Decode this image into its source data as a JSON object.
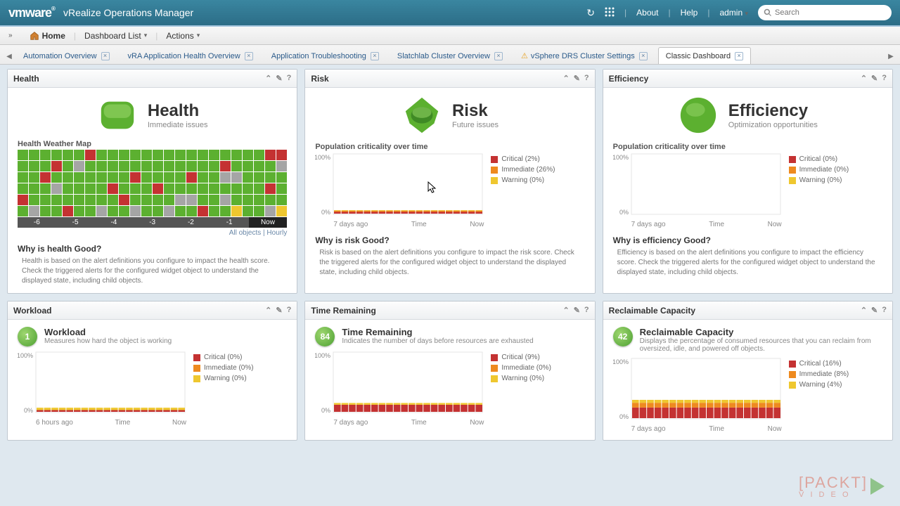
{
  "topbar": {
    "logo": "vmware",
    "app": "vRealize Operations Manager",
    "about": "About",
    "help": "Help",
    "user": "admin",
    "search_placeholder": "Search"
  },
  "menubar": {
    "home": "Home",
    "dashboard_list": "Dashboard List",
    "actions": "Actions"
  },
  "tabs": [
    {
      "label": "Automation Overview"
    },
    {
      "label": "vRA Application Health Overview"
    },
    {
      "label": "Application Troubleshooting"
    },
    {
      "label": "Slatchlab Cluster Overview"
    },
    {
      "label": "vSphere DRS Cluster Settings",
      "warn": true
    },
    {
      "label": "Classic Dashboard",
      "active": true
    }
  ],
  "colors": {
    "green": "#5cb030",
    "red": "#c43232",
    "yellow": "#efc72f",
    "orange": "#ee8a1f",
    "gray": "#a5a5a5",
    "grid": "#e6e6e6"
  },
  "widgets": {
    "health": {
      "title": "Health",
      "badge_title": "Health",
      "badge_sub": "Immediate issues",
      "heatmap_title": "Health Weather Map",
      "heatmap_rows": 6,
      "heatmap_cols": 24,
      "heatmap_reds": [
        [
          0,
          6
        ],
        [
          0,
          22
        ],
        [
          0,
          23
        ],
        [
          1,
          3
        ],
        [
          1,
          18
        ],
        [
          2,
          2
        ],
        [
          2,
          10
        ],
        [
          2,
          15
        ],
        [
          3,
          8
        ],
        [
          3,
          12
        ],
        [
          3,
          22
        ],
        [
          4,
          0
        ],
        [
          4,
          9
        ],
        [
          5,
          4
        ],
        [
          5,
          16
        ]
      ],
      "heatmap_grays": [
        [
          1,
          5
        ],
        [
          1,
          23
        ],
        [
          2,
          18
        ],
        [
          2,
          19
        ],
        [
          3,
          3
        ],
        [
          4,
          14
        ],
        [
          4,
          15
        ],
        [
          4,
          18
        ],
        [
          5,
          1
        ],
        [
          5,
          7
        ],
        [
          5,
          10
        ],
        [
          5,
          13
        ],
        [
          5,
          22
        ]
      ],
      "heatmap_yellows": [
        [
          5,
          19
        ],
        [
          5,
          23
        ]
      ],
      "heatmap_axis": [
        "-6",
        "-5",
        "-4",
        "-3",
        "-2",
        "-1",
        "Now"
      ],
      "heatmap_footer": "All objects | Hourly",
      "why_title": "Why is health Good?",
      "why_body": "Health is based on the alert definitions you configure to impact the health score. Check the triggered alerts for the configured widget object to understand the displayed state, including child objects."
    },
    "risk": {
      "title": "Risk",
      "badge_title": "Risk",
      "badge_sub": "Future issues",
      "chart_title": "Population criticality over time",
      "ylabels": [
        "100%",
        "0%"
      ],
      "xlabels": [
        "7 days ago",
        "Time",
        "Now"
      ],
      "legend": [
        {
          "label": "Critical (2%)",
          "color": "#c43232"
        },
        {
          "label": "Immediate (26%)",
          "color": "#ee8a1f"
        },
        {
          "label": "Warning (0%)",
          "color": "#efc72f"
        }
      ],
      "why_title": "Why is risk Good?",
      "why_body": "Risk is based on the alert definitions you configure to impact the risk score. Check the triggered alerts for the configured widget object to understand the displayed state, including child objects."
    },
    "efficiency": {
      "title": "Efficiency",
      "badge_title": "Efficiency",
      "badge_sub": "Optimization opportunities",
      "chart_title": "Population criticality over time",
      "ylabels": [
        "100%",
        "0%"
      ],
      "xlabels": [
        "7 days ago",
        "Time",
        "Now"
      ],
      "legend": [
        {
          "label": "Critical (0%)",
          "color": "#c43232"
        },
        {
          "label": "Immediate (0%)",
          "color": "#ee8a1f"
        },
        {
          "label": "Warning (0%)",
          "color": "#efc72f"
        }
      ],
      "why_title": "Why is efficiency Good?",
      "why_body": "Efficiency is based on the alert definitions you configure to impact the efficiency score. Check the triggered alerts for the configured widget object to understand the displayed state, including child objects."
    },
    "workload": {
      "title": "Workload",
      "value": "1",
      "small_title": "Workload",
      "small_sub": "Measures how hard the object is working",
      "ylabels": [
        "100%",
        "0%"
      ],
      "xlabels": [
        "6 hours ago",
        "Time",
        "Now"
      ],
      "legend": [
        {
          "label": "Critical (0%)",
          "color": "#c43232"
        },
        {
          "label": "Immediate (0%)",
          "color": "#ee8a1f"
        },
        {
          "label": "Warning (0%)",
          "color": "#efc72f"
        }
      ],
      "bars": {
        "red": 0.03,
        "orange": 0.0,
        "yellow": 0.04
      }
    },
    "time_remaining": {
      "title": "Time Remaining",
      "value": "84",
      "small_title": "Time Remaining",
      "small_sub": "Indicates the number of days before resources are exhausted",
      "ylabels": [
        "100%",
        "0%"
      ],
      "xlabels": [
        "7 days ago",
        "Time",
        "Now"
      ],
      "legend": [
        {
          "label": "Critical (9%)",
          "color": "#c43232"
        },
        {
          "label": "Immediate (0%)",
          "color": "#ee8a1f"
        },
        {
          "label": "Warning (0%)",
          "color": "#efc72f"
        }
      ],
      "bars": {
        "red": 0.12,
        "orange": 0.0,
        "yellow": 0.03
      }
    },
    "reclaimable": {
      "title": "Reclaimable Capacity",
      "value": "42",
      "small_title": "Reclaimable Capacity",
      "small_sub": "Displays the percentage of consumed resources that you can reclaim from oversized, idle, and powered off objects.",
      "ylabels": [
        "100%",
        "0%"
      ],
      "xlabels": [
        "7 days ago",
        "Time",
        "Now"
      ],
      "legend": [
        {
          "label": "Critical (16%)",
          "color": "#c43232"
        },
        {
          "label": "Immediate (8%)",
          "color": "#ee8a1f"
        },
        {
          "label": "Warning (4%)",
          "color": "#efc72f"
        }
      ],
      "bars": {
        "red": 0.18,
        "orange": 0.08,
        "yellow": 0.05
      }
    }
  }
}
